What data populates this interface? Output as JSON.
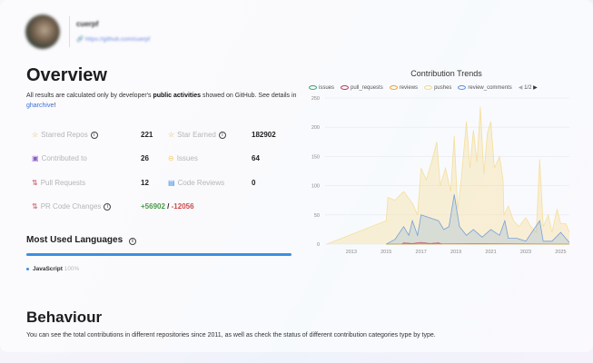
{
  "profile": {
    "username": "cuerpf",
    "link": "https://github.com/cuerpf"
  },
  "overview": {
    "title": "Overview",
    "desc_pre": "All results are calculated only by developer's ",
    "desc_bold": "public activities",
    "desc_mid": " showed on GitHub. See details in ",
    "desc_link": "gharchive",
    "desc_end": "!"
  },
  "stats": [
    {
      "label": "Starred Repos",
      "value": "221",
      "icon": "star-icon",
      "color": "#e8a93c"
    },
    {
      "label": "Star Earned",
      "value": "182902",
      "icon": "star-icon",
      "color": "#e8a93c"
    },
    {
      "label": "Contributed to",
      "value": "26",
      "icon": "repo-icon",
      "color": "#8b5cc8"
    },
    {
      "label": "Issues",
      "value": "64",
      "icon": "issue-icon",
      "color": "#f0d070"
    },
    {
      "label": "Pull Requests",
      "value": "12",
      "icon": "pull-request-icon",
      "color": "#d05060"
    },
    {
      "label": "Code Reviews",
      "value": "0",
      "icon": "review-icon",
      "color": "#3b8fe0"
    },
    {
      "label": "PR Code Changes",
      "add": "+56902",
      "sep": "/",
      "del": "-12056",
      "icon": "pull-request-icon",
      "color": "#d05060"
    }
  ],
  "languages": {
    "title": "Most Used Languages",
    "items": [
      {
        "name": "JavaScript",
        "percent": "100%",
        "color": "#3b8fe0"
      }
    ]
  },
  "behaviour": {
    "title": "Behaviour",
    "desc": "You can see the total contributions in different repositories since 2011, as well as check the status of different contribution categories type by type."
  },
  "chart_data": {
    "type": "area",
    "title": "Contribution Trends",
    "legend_page": "1/2",
    "legend_placement": "top",
    "grid": true,
    "xticks": [
      2013,
      2015,
      2017,
      2019,
      2021,
      2023,
      2025
    ],
    "xlim": [
      2011.5,
      2025.5
    ],
    "yticks": [
      0,
      50,
      100,
      150,
      200,
      250
    ],
    "ylim": [
      0,
      250
    ],
    "series": [
      {
        "name": "issues",
        "color": "#3ba272",
        "points": [
          [
            2015,
            0
          ],
          [
            2020,
            1
          ],
          [
            2025.5,
            0
          ]
        ]
      },
      {
        "name": "pull_requests",
        "color": "#c0395b",
        "points": [
          [
            2015.9,
            0
          ],
          [
            2016,
            2
          ],
          [
            2016.5,
            1
          ],
          [
            2017,
            3
          ],
          [
            2017.5,
            1
          ],
          [
            2018,
            2
          ],
          [
            2018.2,
            0
          ]
        ]
      },
      {
        "name": "reviews",
        "color": "#e8a33c",
        "points": [
          [
            2015,
            0
          ],
          [
            2025.5,
            0
          ]
        ]
      },
      {
        "name": "pushes",
        "color": "#f5d98a",
        "points": [
          [
            2011.6,
            0
          ],
          [
            2015,
            40
          ],
          [
            2015.1,
            80
          ],
          [
            2015.5,
            75
          ],
          [
            2016,
            90
          ],
          [
            2016.5,
            70
          ],
          [
            2016.8,
            50
          ],
          [
            2017,
            130
          ],
          [
            2017.3,
            110
          ],
          [
            2017.6,
            140
          ],
          [
            2017.9,
            175
          ],
          [
            2018.1,
            100
          ],
          [
            2018.4,
            130
          ],
          [
            2018.7,
            90
          ],
          [
            2018.9,
            185
          ],
          [
            2019.1,
            60
          ],
          [
            2019.3,
            110
          ],
          [
            2019.6,
            210
          ],
          [
            2019.8,
            130
          ],
          [
            2020,
            195
          ],
          [
            2020.2,
            140
          ],
          [
            2020.4,
            235
          ],
          [
            2020.6,
            120
          ],
          [
            2020.8,
            190
          ],
          [
            2021,
            210
          ],
          [
            2021.2,
            130
          ],
          [
            2021.5,
            150
          ],
          [
            2021.7,
            110
          ],
          [
            2021.75,
            50
          ],
          [
            2022,
            65
          ],
          [
            2022.3,
            40
          ],
          [
            2022.6,
            30
          ],
          [
            2023,
            45
          ],
          [
            2023.3,
            30
          ],
          [
            2023.6,
            20
          ],
          [
            2023.8,
            145
          ],
          [
            2024,
            30
          ],
          [
            2024.3,
            50
          ],
          [
            2024.5,
            20
          ],
          [
            2024.8,
            60
          ],
          [
            2025,
            35
          ],
          [
            2025.3,
            35
          ],
          [
            2025.5,
            20
          ]
        ]
      },
      {
        "name": "review_comments",
        "color": "#5b8fd8",
        "points": [
          [
            2015,
            0
          ],
          [
            2015.5,
            8
          ],
          [
            2016,
            30
          ],
          [
            2016.3,
            15
          ],
          [
            2016.5,
            40
          ],
          [
            2016.8,
            15
          ],
          [
            2017,
            50
          ],
          [
            2017.5,
            45
          ],
          [
            2018,
            40
          ],
          [
            2018.3,
            25
          ],
          [
            2018.6,
            30
          ],
          [
            2018.9,
            85
          ],
          [
            2019.2,
            30
          ],
          [
            2019.6,
            15
          ],
          [
            2020,
            25
          ],
          [
            2020.5,
            12
          ],
          [
            2021,
            25
          ],
          [
            2021.5,
            15
          ],
          [
            2021.8,
            40
          ],
          [
            2022,
            10
          ],
          [
            2022.5,
            10
          ],
          [
            2023,
            5
          ],
          [
            2023.8,
            40
          ],
          [
            2024,
            5
          ],
          [
            2024.5,
            5
          ],
          [
            2025,
            20
          ],
          [
            2025.5,
            3
          ]
        ]
      }
    ]
  }
}
